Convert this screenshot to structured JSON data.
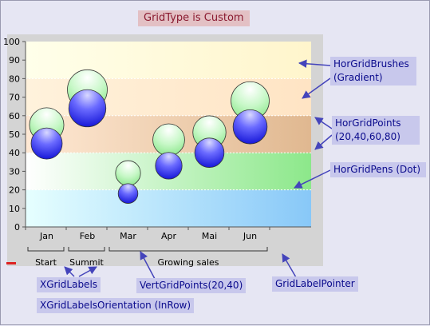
{
  "chart_data": {
    "type": "bubble",
    "title": "GridType is Custom",
    "categories": [
      "Jan",
      "Feb",
      "Mar",
      "Apr",
      "Mai",
      "Jun"
    ],
    "ylim": [
      0,
      100
    ],
    "yticks": [
      0,
      10,
      20,
      30,
      40,
      50,
      60,
      70,
      80,
      90,
      100
    ],
    "series": [
      {
        "color": "#a8f0b0",
        "points": [
          {
            "x": "Jan",
            "y": 55
          },
          {
            "x": "Feb",
            "y": 74
          },
          {
            "x": "Mar",
            "y": 29
          },
          {
            "x": "Apr",
            "y": 47
          },
          {
            "x": "Mai",
            "y": 51
          },
          {
            "x": "Jun",
            "y": 68
          }
        ]
      },
      {
        "color": "#2c2cf0",
        "points": [
          {
            "x": "Jan",
            "y": 45
          },
          {
            "x": "Feb",
            "y": 64
          },
          {
            "x": "Mar",
            "y": 18
          },
          {
            "x": "Apr",
            "y": 33
          },
          {
            "x": "Mai",
            "y": 40
          },
          {
            "x": "Jun",
            "y": 54
          }
        ]
      }
    ],
    "horizontal_grid_points": [
      20,
      40,
      60,
      80
    ],
    "x_group_labels": [
      {
        "label": "Start",
        "from": 0,
        "to": 1
      },
      {
        "label": "Summit",
        "from": 1,
        "to": 2
      },
      {
        "label": "Growing sales",
        "from": 2,
        "to": 6
      }
    ],
    "legend": "none"
  },
  "annotations": {
    "hor_grid_brushes": "HorGridBrushes",
    "gradient": "(Gradient)",
    "hor_grid_points": "HorGridPoints",
    "hor_grid_points_values": "(20,40,60,80)",
    "hor_grid_pens": "HorGridPens (Dot)",
    "x_grid_labels": "XGridLabels",
    "x_grid_labels_orientation": "XGridLabelsOrientation (InRow)",
    "vert_grid_points": "VertGridPoints(20,40)",
    "grid_label_pointer": "GridLabelPointer"
  },
  "colors": {
    "background": "#e6e6f3",
    "chart_frame": "#d4d4d4",
    "callout_bg": "#c8c8ec",
    "callout_text": "#0a0a8c",
    "title_bg": "#e3c0c4",
    "arrow": "#4444bb"
  }
}
